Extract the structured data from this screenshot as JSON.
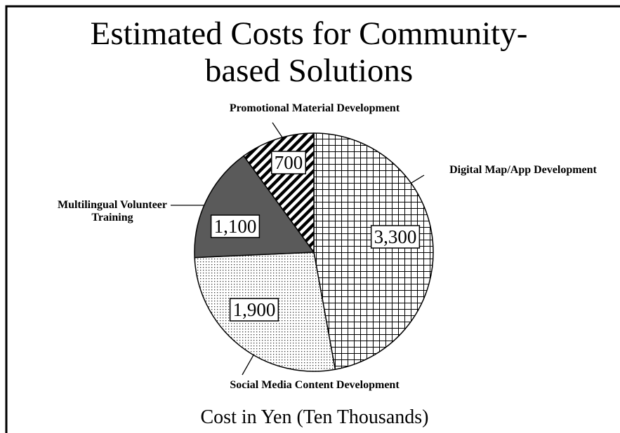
{
  "chart_data": {
    "type": "pie",
    "title": "Estimated Costs for Community-based Solutions",
    "subtitle": "Cost in Yen (Ten Thousands)",
    "categories": [
      "Digital Map/App Development",
      "Social Media Content Development",
      "Multilingual Volunteer Training",
      "Promotional Material Development"
    ],
    "values": [
      3300,
      1900,
      1100,
      700
    ],
    "value_labels": [
      "3,300",
      "1,900",
      "1,100",
      "700"
    ],
    "patterns": [
      "grid",
      "dots",
      "solid",
      "stripes"
    ],
    "solid_color": "#5a5a5a"
  }
}
